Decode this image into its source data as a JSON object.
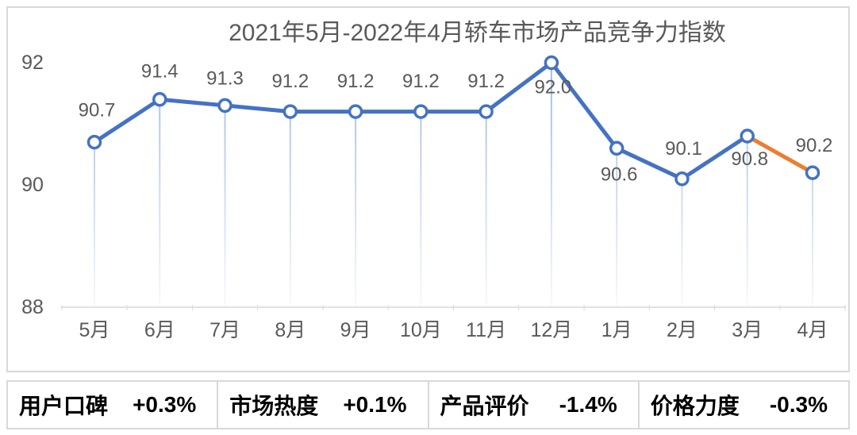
{
  "chart_data": {
    "type": "line",
    "title": "2021年5月-2022年4月轿车市场产品竞争力指数",
    "categories": [
      "5月",
      "6月",
      "7月",
      "8月",
      "9月",
      "10月",
      "11月",
      "12月",
      "1月",
      "2月",
      "3月",
      "4月"
    ],
    "values": [
      90.7,
      91.4,
      91.3,
      91.2,
      91.2,
      91.2,
      91.2,
      92.0,
      90.6,
      90.1,
      90.8,
      90.2
    ],
    "point_labels": [
      "90.7",
      "91.4",
      "91.3",
      "91.2",
      "91.2",
      "91.2",
      "91.2",
      "92.0",
      "90.6",
      "90.1",
      "90.8",
      "90.2"
    ],
    "xlabel": "",
    "ylabel": "",
    "ylim": [
      88,
      92
    ],
    "yticks": [
      88,
      90,
      92
    ],
    "ytick_labels": [
      "88",
      "90",
      "92"
    ],
    "grid": false,
    "legend": "none",
    "line_color": "#4472C4",
    "last_segment_color": "#ED7D31",
    "marker_fill": "#FFFFFF",
    "droplines": true,
    "label_dy": [
      -40,
      -35,
      -34,
      -38,
      -38,
      -38,
      -38,
      31,
      33,
      -38,
      29,
      -34
    ],
    "label_dx": [
      3,
      0,
      0,
      0,
      0,
      0,
      0,
      2,
      3,
      2,
      3,
      2
    ]
  },
  "metrics": [
    {
      "label": "用户口碑",
      "value": "+0.3%"
    },
    {
      "label": "市场热度",
      "value": "+0.1%"
    },
    {
      "label": "产品评价",
      "value": "-1.4%"
    },
    {
      "label": "价格力度",
      "value": "-0.3%"
    }
  ],
  "colors": {
    "line": "#4472C4",
    "highlight": "#ED7D31",
    "axis": "#D9D9D9",
    "border": "#D9D9D9",
    "text": "#595959",
    "metric_text": "#000000",
    "background": "#FFFFFF"
  }
}
